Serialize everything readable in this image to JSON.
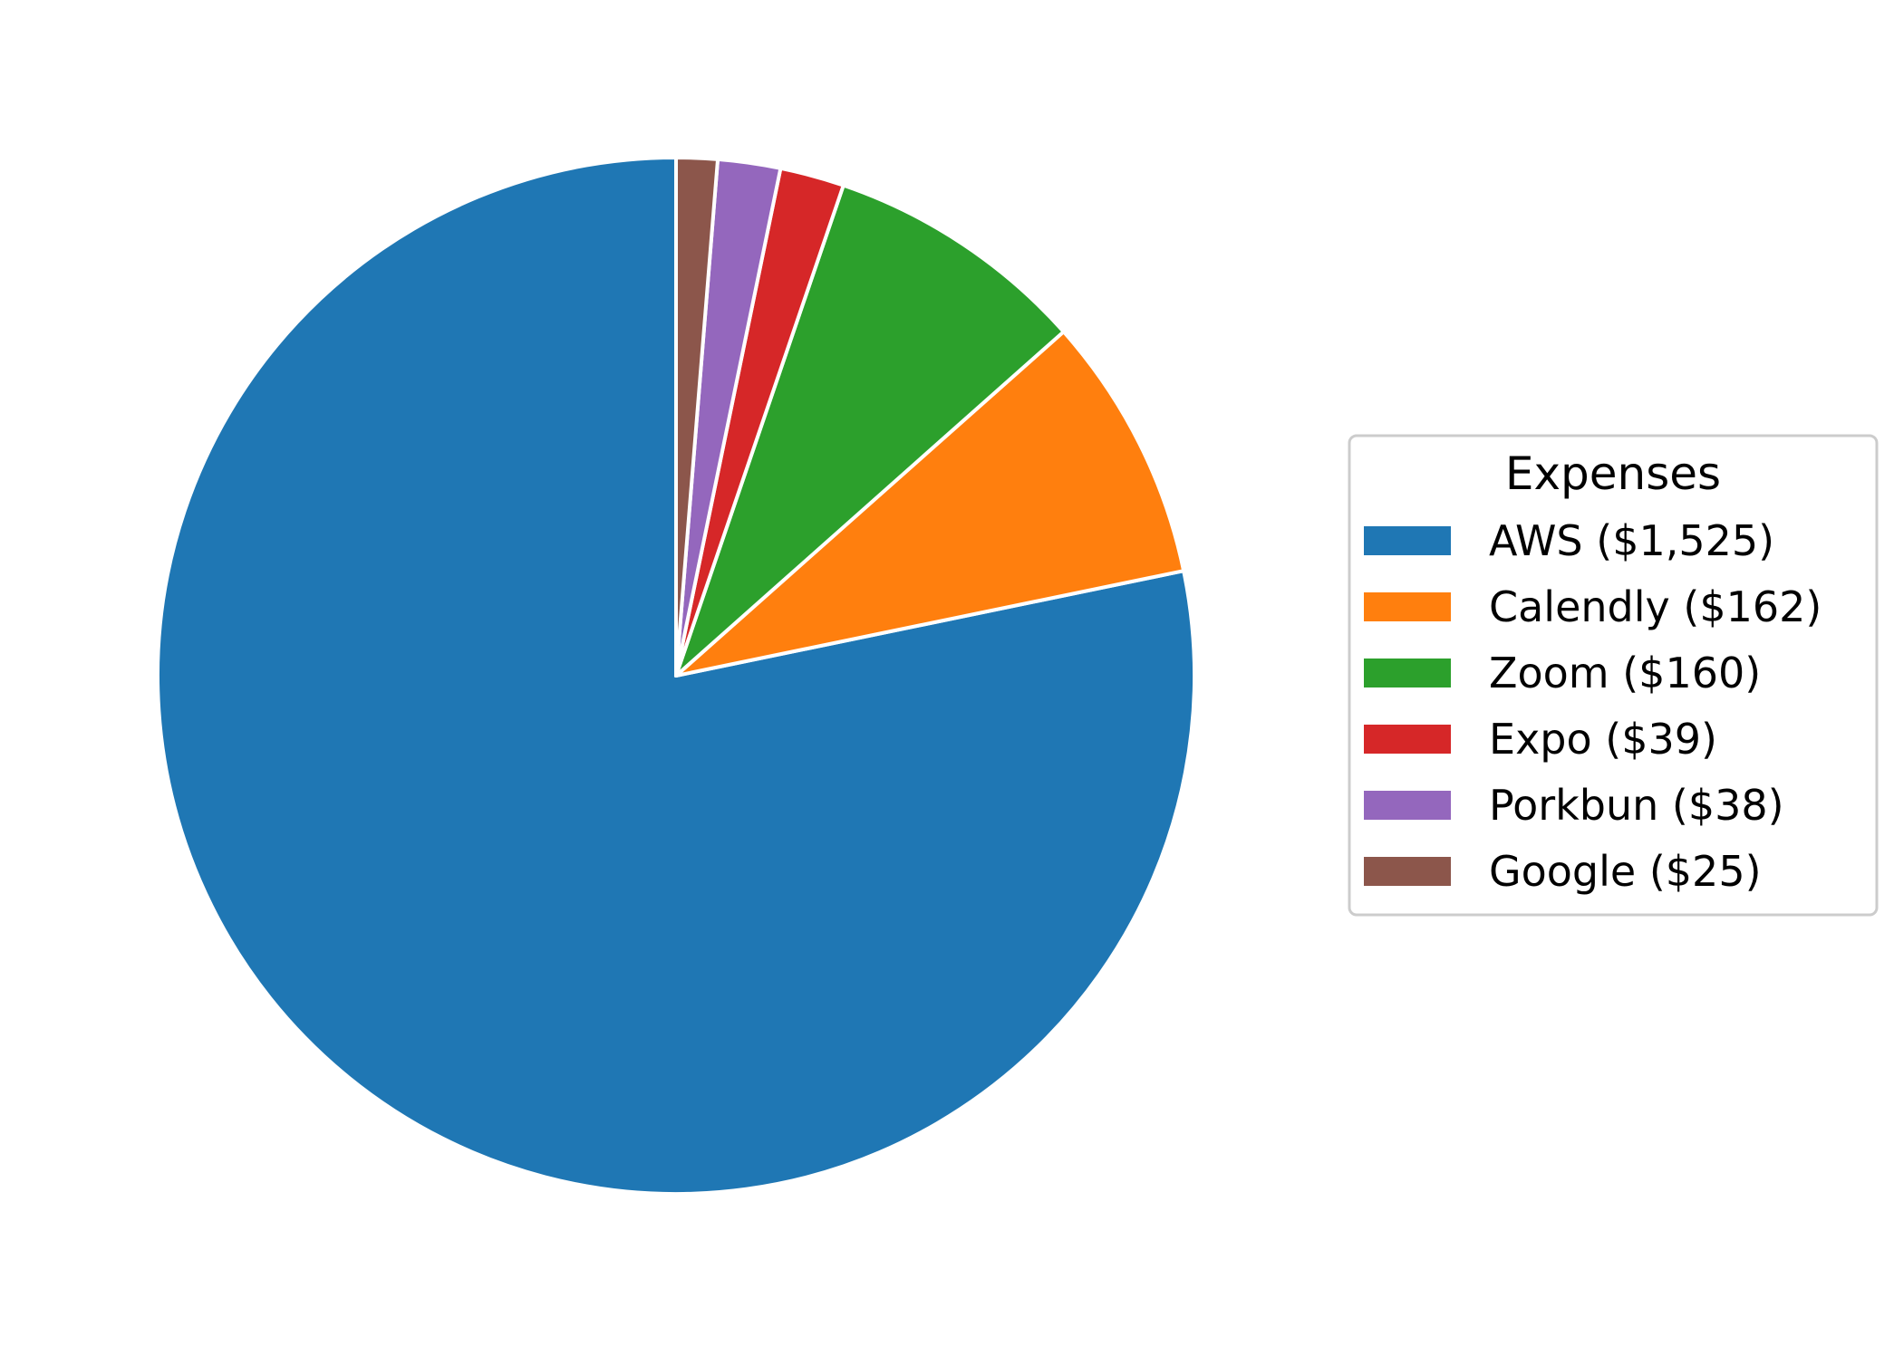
{
  "chart_data": {
    "type": "pie",
    "categories": [
      "AWS ($1,525)",
      "Calendly ($162)",
      "Zoom ($160)",
      "Expo ($39)",
      "Porkbun ($38)",
      "Google ($25)"
    ],
    "values": [
      1525,
      162,
      160,
      39,
      38,
      25
    ],
    "colors": [
      "#1f77b4",
      "#ff7f0e",
      "#2ca02c",
      "#d62728",
      "#9467bd",
      "#8c564b"
    ],
    "start_angle_deg": 90,
    "direction": "counterclockwise",
    "edge_color": "#ffffff",
    "legend": {
      "title": "Expenses",
      "placement": "right"
    }
  }
}
